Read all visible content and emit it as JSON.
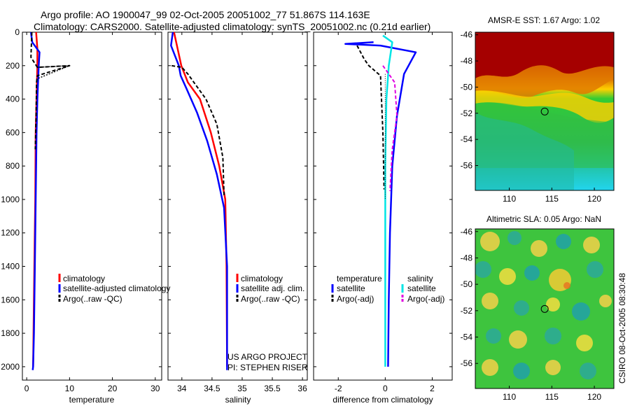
{
  "title": {
    "line1": "Argo profile: AO 1900047_99 02-Oct-2005 20051002_77 51.867S 114.163E",
    "line2": "Climatology: CARS2000. Satellite-adjusted climatology: synTS_20051002.nc (0.21d earlier)"
  },
  "side_label": "CSIRO 08-Oct-2005 08:30:48",
  "credits": [
    "US ARGO PROJECT",
    "PI: STEPHEN RISER"
  ],
  "colors": {
    "climatology": "#ff0000",
    "satellite": "#0000ff",
    "argo": "#000000",
    "satellite_sal": "#00e5e5",
    "argo_sal": "#e000e0"
  },
  "chart_data": [
    {
      "type": "line",
      "id": "temperature",
      "xlabel": "temperature",
      "ylabel": "",
      "xlim": [
        -1,
        31.5
      ],
      "ylim": [
        2080,
        0
      ],
      "xticks": [
        "0",
        "10",
        "20",
        "30"
      ],
      "yticks": [
        "0",
        "200",
        "400",
        "600",
        "800",
        "1000",
        "1200",
        "1400",
        "1600",
        "1800",
        "2000"
      ],
      "legend": [
        "climatology",
        "satellite-adjusted climatology",
        "Argo(..raw -QC)"
      ],
      "series": [
        {
          "name": "climatology",
          "x": [
            2.2,
            2.5,
            2.5,
            2.3,
            2.1,
            2.0,
            1.8,
            1.6,
            1.5
          ],
          "y": [
            0,
            100,
            200,
            400,
            600,
            1000,
            1400,
            1800,
            2000
          ]
        },
        {
          "name": "satellite-adjusted climatology",
          "x": [
            1.0,
            1.3,
            3.0,
            2.8,
            2.5,
            2.3,
            2.1,
            1.9,
            1.7,
            1.5,
            1.4
          ],
          "y": [
            0,
            60,
            120,
            200,
            400,
            600,
            1000,
            1400,
            1800,
            2000,
            2020
          ]
        },
        {
          "name": "Argo(..raw -QC)",
          "x": [
            1.2,
            1.0,
            2.5,
            10.0,
            2.5,
            2.3,
            2.2,
            2.0
          ],
          "y": [
            0,
            150,
            210,
            200,
            260,
            300,
            500,
            700
          ]
        }
      ]
    },
    {
      "type": "line",
      "id": "salinity",
      "xlabel": "salinity",
      "ylabel": "",
      "xlim": [
        33.77,
        36.08
      ],
      "ylim": [
        2080,
        0
      ],
      "xticks": [
        "34",
        "34.5",
        "35",
        "35.5",
        "36"
      ],
      "yticks": [],
      "legend": [
        "climatology",
        "satellite adj. clim.",
        "Argo(..raw -QC)"
      ],
      "series": [
        {
          "name": "climatology",
          "x": [
            33.87,
            33.93,
            33.99,
            34.1,
            34.3,
            34.48,
            34.62,
            34.72,
            34.74,
            34.75
          ],
          "y": [
            0,
            100,
            200,
            300,
            400,
            600,
            800,
            1000,
            1400,
            2000
          ]
        },
        {
          "name": "satellite adj. clim.",
          "x": [
            33.85,
            33.82,
            33.95,
            33.98,
            34.08,
            34.25,
            34.42,
            34.58,
            34.7,
            34.75,
            34.75
          ],
          "y": [
            0,
            80,
            200,
            260,
            340,
            480,
            650,
            850,
            1050,
            1400,
            2020
          ]
        },
        {
          "name": "Argo(..raw -QC)",
          "x": [
            33.83,
            34.0,
            34.1,
            34.2,
            34.4,
            34.58,
            34.68,
            34.7
          ],
          "y": [
            200,
            210,
            250,
            300,
            400,
            550,
            750,
            980
          ]
        }
      ]
    },
    {
      "type": "line",
      "id": "difference",
      "xlabel": "difference from climatology",
      "ylabel": "",
      "xlim": [
        -3.05,
        2.85
      ],
      "ylim": [
        2080,
        0
      ],
      "xticks": [
        "-2",
        "0",
        "2"
      ],
      "yticks": [],
      "legend_groups": [
        {
          "heading": "temperature",
          "items": [
            "satellite",
            "Argo(-adj)"
          ]
        },
        {
          "heading": "salinity",
          "items": [
            "satellite",
            "Argo(-adj)"
          ]
        }
      ],
      "series": [
        {
          "name": "temperature satellite",
          "x": [
            -0.5,
            -1.7,
            -0.2,
            1.3,
            0.8,
            0.5,
            0.3,
            0.2,
            0.15,
            0.12
          ],
          "y": [
            60,
            70,
            80,
            120,
            250,
            500,
            800,
            1200,
            1600,
            2000
          ]
        },
        {
          "name": "temperature Argo(-adj)",
          "x": [
            -1.2,
            -0.9,
            -0.8,
            -0.7,
            -0.2,
            -0.1,
            -0.05
          ],
          "y": [
            80,
            160,
            180,
            200,
            260,
            600,
            940
          ]
        },
        {
          "name": "salinity satellite",
          "x": [
            -0.1,
            0.3,
            0.15,
            0.05,
            0.0,
            0.0,
            0.0
          ],
          "y": [
            20,
            60,
            200,
            400,
            800,
            1400,
            2000
          ]
        },
        {
          "name": "salinity Argo(-adj)",
          "x": [
            -0.1,
            0.4,
            0.5,
            0.3,
            0.2
          ],
          "y": [
            200,
            300,
            500,
            700,
            950
          ]
        }
      ]
    },
    {
      "type": "heatmap",
      "id": "sst-map",
      "title": "AMSR-E SST: 1.67 Argo: 1.02",
      "xlim": [
        106,
        122.3
      ],
      "ylim": [
        -57.9,
        -45.8
      ],
      "xticks": [
        "110",
        "115",
        "120"
      ],
      "yticks": [
        "-46",
        "-48",
        "-50",
        "-52",
        "-54",
        "-56"
      ],
      "marker": {
        "lon": 114.163,
        "lat": -51.867
      }
    },
    {
      "type": "heatmap",
      "id": "sla-map",
      "title": "Altimetric SLA: 0.05 Argo: NaN",
      "xlim": [
        106,
        122.3
      ],
      "ylim": [
        -57.9,
        -45.8
      ],
      "xticks": [
        "110",
        "115",
        "120"
      ],
      "yticks": [
        "-46",
        "-48",
        "-50",
        "-52",
        "-54",
        "-56"
      ],
      "marker": {
        "lon": 114.163,
        "lat": -51.867
      }
    }
  ]
}
